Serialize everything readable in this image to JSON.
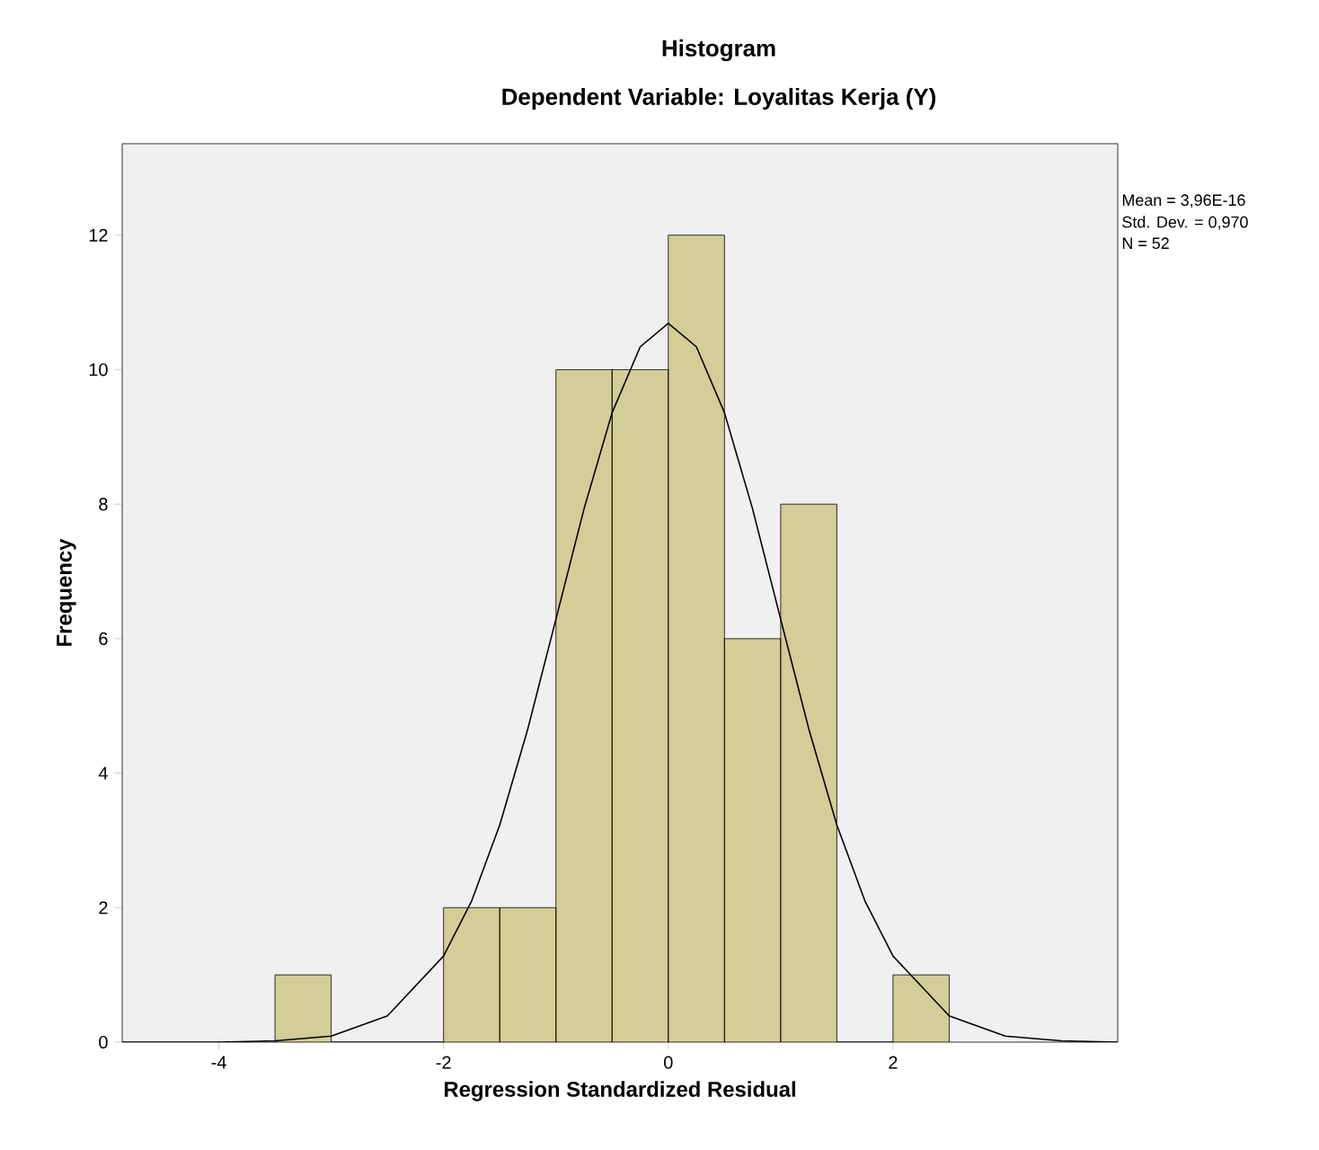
{
  "chart_data": {
    "type": "histogram",
    "title": "Histogram",
    "subtitle": "Dependent Variable: Loyalitas Kerja (Y)",
    "xlabel": "Regression Standardized Residual",
    "ylabel": "Frequency",
    "bins": [
      -3.5,
      -3,
      -2.5,
      -2,
      -1.5,
      -1,
      -0.5,
      0,
      0.5,
      1,
      1.5,
      2,
      2.5
    ],
    "values": [
      1,
      0,
      0,
      2,
      2,
      10,
      10,
      12,
      6,
      8,
      0,
      1
    ],
    "color": "#d3ce97",
    "series": [
      {
        "type": "line",
        "color": "#000000",
        "x": [
          -4.86,
          -4.5,
          -4,
          -3.5,
          -3,
          -2.5,
          -2,
          -1.75,
          -1.5,
          -1.25,
          -1,
          -0.75,
          -0.5,
          -0.25,
          0,
          0.25,
          0.5,
          0.75,
          1,
          1.25,
          1.5,
          1.75,
          2,
          2.5,
          3,
          3.5,
          4
        ],
        "values": [
          0,
          0,
          0,
          0.02,
          0.09,
          0.39,
          1.28,
          2.1,
          3.23,
          4.66,
          6.29,
          7.93,
          9.36,
          10.34,
          10.69,
          10.34,
          9.36,
          7.93,
          6.29,
          4.66,
          3.23,
          2.1,
          1.28,
          0.39,
          0.09,
          0.02,
          0
        ]
      }
    ],
    "xlim": [
      -4.86,
      4
    ],
    "ylim": [
      0,
      13.36
    ],
    "xticks": [
      -4,
      -2,
      0,
      2
    ],
    "yticks": [
      0,
      2,
      4,
      6,
      8,
      10,
      12
    ],
    "annotations": [
      "Mean = 3,96E-16",
      "Std. Dev. = 0,970",
      "N = 52"
    ]
  }
}
